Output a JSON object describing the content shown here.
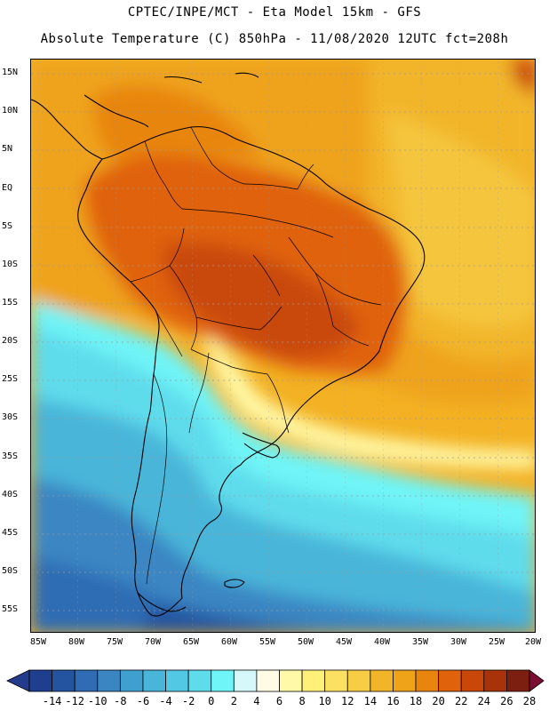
{
  "header": {
    "line1": "CPTEC/INPE/MCT -  Eta Model 15km - GFS",
    "line2": "Absolute Temperature (C) 850hPa - 11/08/2020 12UTC fct=208h"
  },
  "map": {
    "variable": "Absolute Temperature (C) 850hPa",
    "lat_labels": [
      "15N",
      "10N",
      "5N",
      "EQ",
      "5S",
      "10S",
      "15S",
      "20S",
      "25S",
      "30S",
      "35S",
      "40S",
      "45S",
      "50S",
      "55S"
    ],
    "lon_labels": [
      "85W",
      "80W",
      "75W",
      "70W",
      "65W",
      "60W",
      "55W",
      "50W",
      "45W",
      "40W",
      "35W",
      "30W",
      "25W",
      "20W"
    ]
  },
  "colorbar": {
    "labels": [
      "-14",
      "-12",
      "-10",
      "-8",
      "-6",
      "-4",
      "-2",
      "0",
      "2",
      "4",
      "6",
      "8",
      "10",
      "12",
      "14",
      "16",
      "18",
      "20",
      "22",
      "24",
      "26",
      "28"
    ],
    "colors": [
      "#1e3f8e",
      "#2453a0",
      "#2f6cb3",
      "#3a86c3",
      "#3f9fcf",
      "#48b5d9",
      "#52c8e4",
      "#5edcec",
      "#6ff4f7",
      "#d6f8fa",
      "#fffbe4",
      "#fff9a8",
      "#fff07a",
      "#fce061",
      "#f7cd45",
      "#f2b52a",
      "#efa319",
      "#e8850f",
      "#e0620a",
      "#c94809",
      "#a83209",
      "#7c1f11"
    ],
    "under_color": "#233b8d",
    "over_color": "#7c0e2f"
  }
}
